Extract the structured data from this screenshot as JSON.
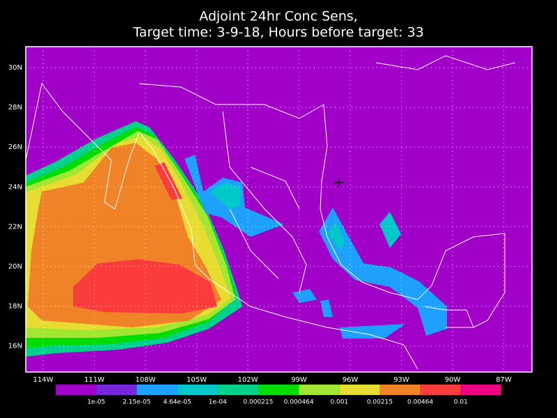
{
  "header": {
    "title_lines": [
      "Adjoint 24hr Conc Sens,",
      "Target time: 3-9-18, Hours before target: 33"
    ]
  },
  "map": {
    "lat_labels": [
      "30N",
      "28N",
      "26N",
      "24N",
      "22N",
      "20N",
      "18N",
      "16N"
    ],
    "lon_labels": [
      "114W",
      "111W",
      "108W",
      "105W",
      "102W",
      "99W",
      "96W",
      "93W",
      "90W",
      "87W"
    ],
    "background_color": "#a000c8"
  },
  "colorbar": {
    "colors": [
      "#a000c8",
      "#7828dc",
      "#1ea0ff",
      "#00c8c8",
      "#00d28c",
      "#00dc00",
      "#a0e632",
      "#e6dc32",
      "#f08228",
      "#fa3c3c",
      "#f00082"
    ],
    "labels": [
      "1e-05",
      "2.15e-05",
      "4.64e-05",
      "1e-04",
      "0.000215",
      "0.000464",
      "0.001",
      "0.00215",
      "0.00464",
      "0.01"
    ]
  }
}
